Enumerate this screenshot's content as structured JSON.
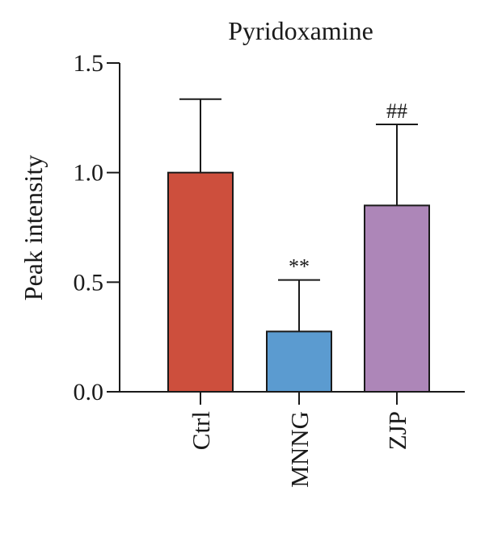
{
  "chart_data": {
    "type": "bar",
    "title": "Pyridoxamine",
    "ylabel": "Peak intensity",
    "xlabel": "",
    "ylim": [
      0,
      1.5
    ],
    "yticks": [
      "0.0",
      "0.5",
      "1.0",
      "1.5"
    ],
    "ytick_values": [
      0,
      0.5,
      1.0,
      1.5
    ],
    "categories": [
      "Ctrl",
      "MNNG",
      "ZJP"
    ],
    "values": [
      1.0,
      0.275,
      0.85
    ],
    "errors": [
      0.335,
      0.235,
      0.37
    ],
    "annotations": [
      "",
      "**",
      "##"
    ],
    "colors": [
      "#cd4f3d",
      "#5b9bd0",
      "#ad86b8"
    ],
    "grid": false,
    "legend": "none"
  }
}
